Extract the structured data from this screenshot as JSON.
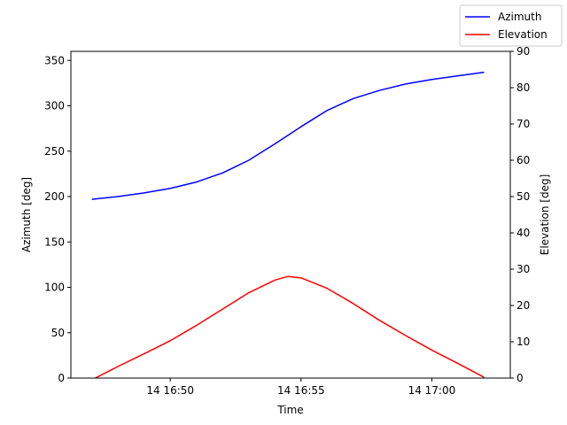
{
  "chart_data": {
    "type": "line",
    "title": "",
    "xlabel": "Time",
    "ylabel_left": "Azimuth [deg]",
    "ylabel_right": "Elevation [deg]",
    "x_unit": "minutes",
    "x_ticks": [
      {
        "value": "2024-01-14T16:50",
        "label": "14 16:50"
      },
      {
        "value": "2024-01-14T16:55",
        "label": "14 16:55"
      },
      {
        "value": "2024-01-14T17:00",
        "label": "14 17:00"
      }
    ],
    "xlim": [
      "2024-01-14T16:46:12",
      "2024-01-14T17:03:00"
    ],
    "ylim_left": [
      0,
      360
    ],
    "yticks_left": [
      0,
      50,
      100,
      150,
      200,
      250,
      300,
      350
    ],
    "ylim_right": [
      0,
      90
    ],
    "yticks_right": [
      0,
      10,
      20,
      30,
      40,
      50,
      60,
      70,
      80,
      90
    ],
    "grid": false,
    "legend_position": "top-right",
    "series": [
      {
        "name": "Azimuth",
        "axis": "left",
        "color": "#0000ff",
        "x": [
          "2024-01-14T16:47:00",
          "2024-01-14T16:48:00",
          "2024-01-14T16:49:00",
          "2024-01-14T16:50:00",
          "2024-01-14T16:51:00",
          "2024-01-14T16:52:00",
          "2024-01-14T16:53:00",
          "2024-01-14T16:54:00",
          "2024-01-14T16:55:00",
          "2024-01-14T16:56:00",
          "2024-01-14T16:57:00",
          "2024-01-14T16:58:00",
          "2024-01-14T16:59:00",
          "2024-01-14T17:00:00",
          "2024-01-14T17:01:00",
          "2024-01-14T17:02:00"
        ],
        "y": [
          197,
          200,
          204,
          209,
          216,
          226,
          240,
          258,
          277,
          295,
          308,
          317,
          324,
          329,
          333,
          337
        ]
      },
      {
        "name": "Elevation",
        "axis": "right",
        "color": "#ff0000",
        "x": [
          "2024-01-14T16:47:00",
          "2024-01-14T16:48:00",
          "2024-01-14T16:49:00",
          "2024-01-14T16:50:00",
          "2024-01-14T16:51:00",
          "2024-01-14T16:52:00",
          "2024-01-14T16:53:00",
          "2024-01-14T16:54:00",
          "2024-01-14T16:54:30",
          "2024-01-14T16:55:00",
          "2024-01-14T16:56:00",
          "2024-01-14T16:57:00",
          "2024-01-14T16:58:00",
          "2024-01-14T16:59:00",
          "2024-01-14T17:00:00",
          "2024-01-14T17:01:00",
          "2024-01-14T17:02:00"
        ],
        "y": [
          -0.5,
          3.2,
          6.7,
          10.3,
          14.5,
          19.0,
          23.5,
          27.0,
          28.0,
          27.6,
          24.7,
          20.5,
          15.9,
          11.7,
          7.7,
          4.0,
          0.2
        ]
      }
    ]
  }
}
